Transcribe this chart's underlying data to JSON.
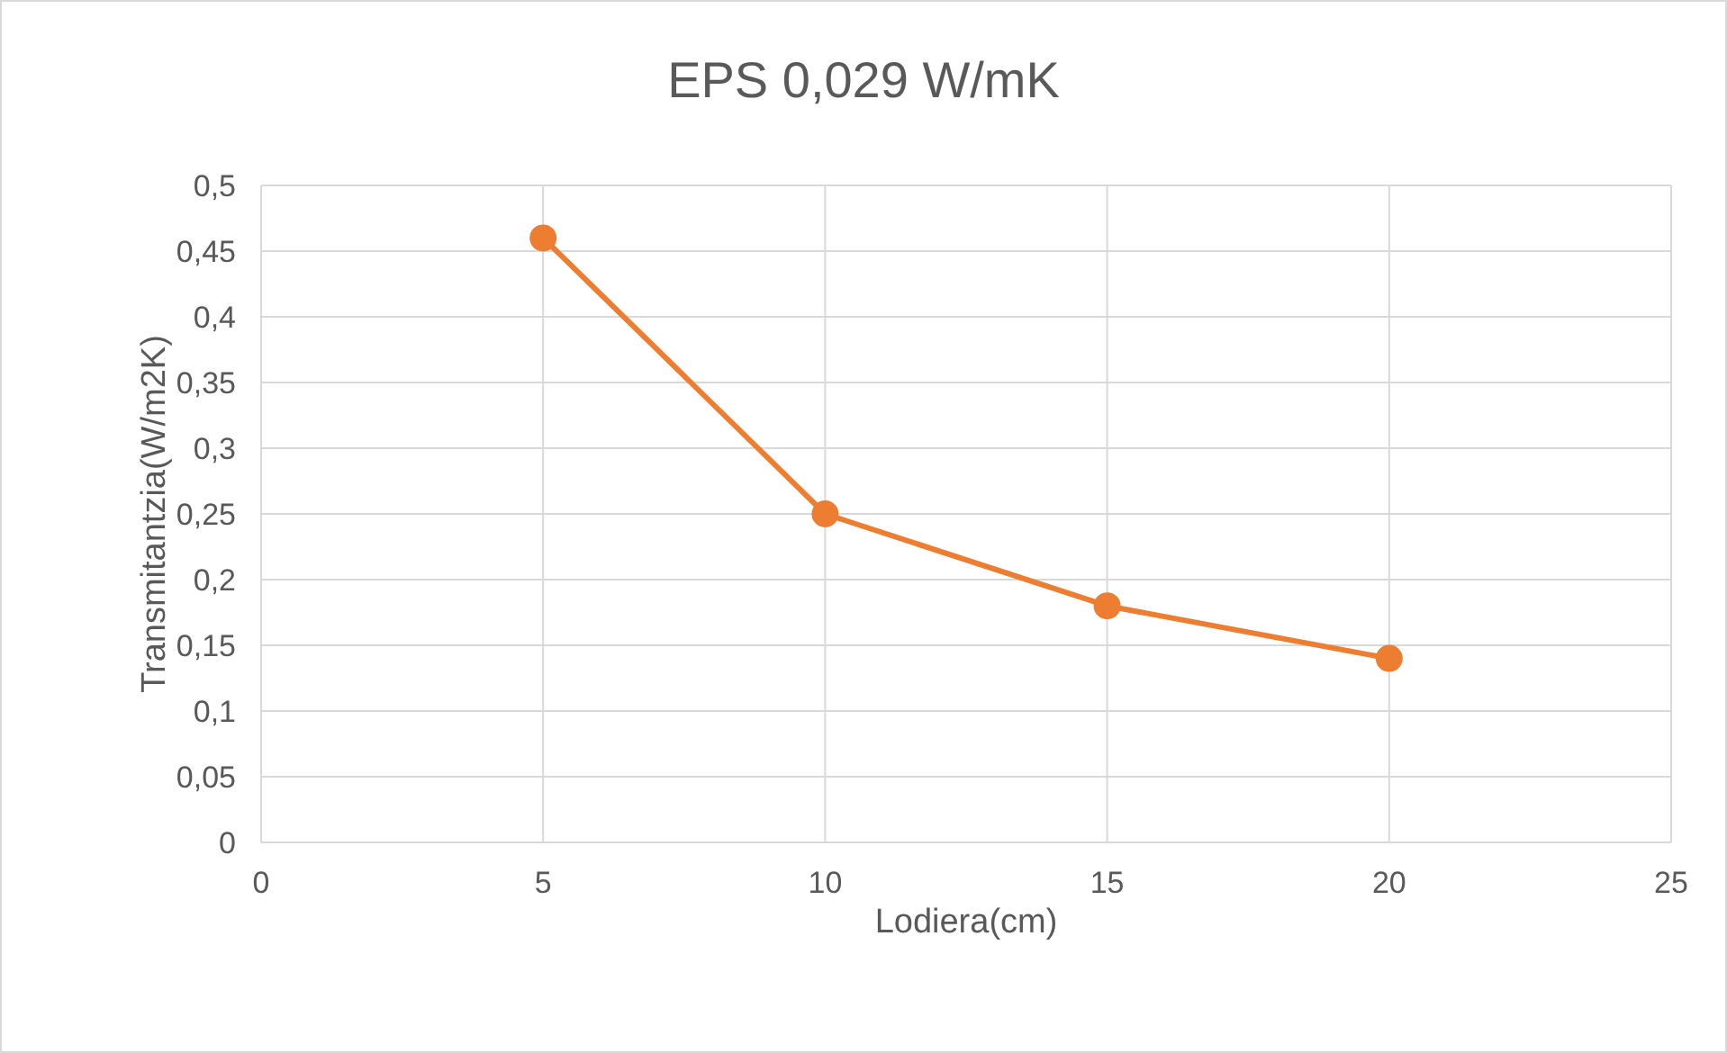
{
  "chart_data": {
    "type": "line",
    "title": "EPS 0,029 W/mK",
    "xlabel": "Lodiera(cm)",
    "ylabel": "Transmitantzia(W/m2K)",
    "x": [
      5,
      10,
      15,
      20
    ],
    "series": [
      {
        "color": "#ed7d31",
        "values": [
          0.46,
          0.25,
          0.18,
          0.14
        ]
      }
    ],
    "xlim": [
      0,
      25
    ],
    "xticks": [
      0,
      5,
      10,
      15,
      20,
      25
    ],
    "ylim": [
      0,
      0.5
    ],
    "yticks": [
      0,
      {
        "value": 0.05,
        "label": "0,05"
      },
      {
        "value": 0.1,
        "label": "0,1"
      },
      {
        "value": 0.15,
        "label": "0,15"
      },
      {
        "value": 0.2,
        "label": "0,2"
      },
      {
        "value": 0.25,
        "label": "0,25"
      },
      {
        "value": 0.3,
        "label": "0,3"
      },
      {
        "value": 0.35,
        "label": "0,35"
      },
      {
        "value": 0.4,
        "label": "0,4"
      },
      {
        "value": 0.45,
        "label": "0,45"
      },
      {
        "value": 0.5,
        "label": "0,5"
      }
    ],
    "grid": true,
    "marker": "circle",
    "line_style": "solid"
  }
}
